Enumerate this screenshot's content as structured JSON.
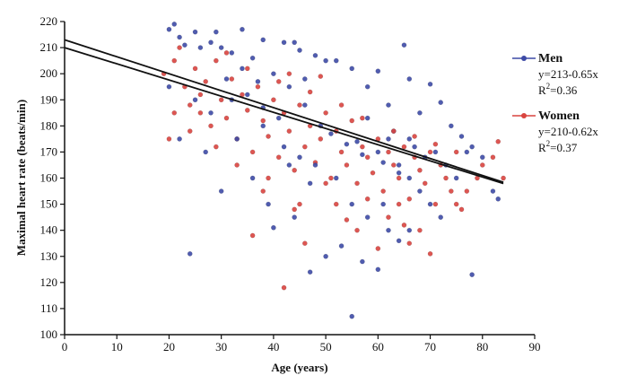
{
  "chart_data": {
    "type": "scatter",
    "xlabel": "Age (years)",
    "ylabel": "Maximal heart rate (beats/min)",
    "xlim": [
      0,
      90
    ],
    "ylim": [
      100,
      220
    ],
    "xticks": [
      "0",
      "10",
      "20",
      "30",
      "40",
      "50",
      "60",
      "70",
      "80",
      "90"
    ],
    "yticks": [
      "100",
      "110",
      "120",
      "130",
      "140",
      "150",
      "160",
      "170",
      "180",
      "190",
      "200",
      "210",
      "220"
    ],
    "grid": false,
    "legend_position": "right",
    "series": [
      {
        "name": "Men",
        "color": "#3d4aa6",
        "equation": "y=213-0.65x",
        "r2_prefix": "R",
        "r2_sup": "2",
        "r2_value": "=0.36",
        "intercept": 213,
        "slope": -0.65,
        "fit_range": [
          0,
          84
        ],
        "points": [
          [
            20,
            217
          ],
          [
            21,
            219
          ],
          [
            22,
            214
          ],
          [
            23,
            211
          ],
          [
            25,
            216
          ],
          [
            26,
            210
          ],
          [
            28,
            212
          ],
          [
            29,
            216
          ],
          [
            30,
            210
          ],
          [
            32,
            208
          ],
          [
            34,
            217
          ],
          [
            36,
            206
          ],
          [
            38,
            213
          ],
          [
            42,
            212
          ],
          [
            44,
            212
          ],
          [
            45,
            209
          ],
          [
            48,
            207
          ],
          [
            50,
            205
          ],
          [
            52,
            205
          ],
          [
            55,
            202
          ],
          [
            60,
            201
          ],
          [
            65,
            211
          ],
          [
            66,
            198
          ],
          [
            70,
            196
          ],
          [
            72,
            189
          ],
          [
            58,
            195
          ],
          [
            62,
            188
          ],
          [
            68,
            185
          ],
          [
            74,
            180
          ],
          [
            76,
            176
          ],
          [
            78,
            172
          ],
          [
            80,
            168
          ],
          [
            82,
            155
          ],
          [
            83,
            152
          ],
          [
            56,
            174
          ],
          [
            60,
            170
          ],
          [
            64,
            165
          ],
          [
            66,
            160
          ],
          [
            68,
            155
          ],
          [
            70,
            150
          ],
          [
            72,
            145
          ],
          [
            55,
            150
          ],
          [
            58,
            145
          ],
          [
            62,
            140
          ],
          [
            64,
            136
          ],
          [
            57,
            128
          ],
          [
            60,
            125
          ],
          [
            50,
            130
          ],
          [
            53,
            134
          ],
          [
            55,
            107
          ],
          [
            47,
            124
          ],
          [
            44,
            145
          ],
          [
            40,
            141
          ],
          [
            39,
            150
          ],
          [
            36,
            160
          ],
          [
            33,
            175
          ],
          [
            30,
            155
          ],
          [
            27,
            170
          ],
          [
            24,
            131
          ],
          [
            22,
            175
          ],
          [
            20,
            195
          ],
          [
            25,
            190
          ],
          [
            28,
            185
          ],
          [
            31,
            198
          ],
          [
            35,
            192
          ],
          [
            38,
            187
          ],
          [
            41,
            183
          ],
          [
            43,
            195
          ],
          [
            46,
            188
          ],
          [
            49,
            180
          ],
          [
            51,
            177
          ],
          [
            54,
            173
          ],
          [
            57,
            169
          ],
          [
            61,
            166
          ],
          [
            63,
            178
          ],
          [
            67,
            172
          ],
          [
            69,
            168
          ],
          [
            73,
            165
          ],
          [
            75,
            160
          ],
          [
            77,
            170
          ],
          [
            42,
            172
          ],
          [
            45,
            168
          ],
          [
            48,
            165
          ],
          [
            52,
            160
          ],
          [
            40,
            200
          ],
          [
            37,
            197
          ],
          [
            34,
            202
          ],
          [
            46,
            198
          ],
          [
            58,
            183
          ],
          [
            62,
            175
          ],
          [
            64,
            162
          ],
          [
            66,
            175
          ],
          [
            71,
            170
          ],
          [
            78,
            123
          ],
          [
            66,
            140
          ],
          [
            61,
            150
          ],
          [
            47,
            158
          ],
          [
            43,
            165
          ],
          [
            38,
            180
          ],
          [
            32,
            190
          ]
        ]
      },
      {
        "name": "Women",
        "color": "#d9443f",
        "equation": "y=210-0.62x",
        "r2_prefix": "R",
        "r2_sup": "2",
        "r2_value": "=0.37",
        "intercept": 210,
        "slope": -0.62,
        "fit_range": [
          0,
          84
        ],
        "points": [
          [
            19,
            200
          ],
          [
            20,
            175
          ],
          [
            21,
            205
          ],
          [
            22,
            210
          ],
          [
            23,
            195
          ],
          [
            24,
            188
          ],
          [
            25,
            202
          ],
          [
            26,
            185
          ],
          [
            27,
            197
          ],
          [
            28,
            180
          ],
          [
            29,
            205
          ],
          [
            30,
            190
          ],
          [
            31,
            183
          ],
          [
            32,
            198
          ],
          [
            33,
            175
          ],
          [
            34,
            192
          ],
          [
            35,
            186
          ],
          [
            36,
            170
          ],
          [
            37,
            195
          ],
          [
            38,
            182
          ],
          [
            39,
            176
          ],
          [
            40,
            190
          ],
          [
            41,
            168
          ],
          [
            42,
            185
          ],
          [
            43,
            178
          ],
          [
            44,
            163
          ],
          [
            45,
            188
          ],
          [
            46,
            172
          ],
          [
            47,
            180
          ],
          [
            48,
            166
          ],
          [
            49,
            175
          ],
          [
            50,
            185
          ],
          [
            51,
            160
          ],
          [
            52,
            178
          ],
          [
            53,
            170
          ],
          [
            54,
            165
          ],
          [
            55,
            182
          ],
          [
            56,
            158
          ],
          [
            57,
            172
          ],
          [
            58,
            168
          ],
          [
            59,
            162
          ],
          [
            60,
            175
          ],
          [
            61,
            155
          ],
          [
            62,
            170
          ],
          [
            63,
            165
          ],
          [
            64,
            160
          ],
          [
            65,
            172
          ],
          [
            66,
            152
          ],
          [
            67,
            168
          ],
          [
            68,
            163
          ],
          [
            69,
            158
          ],
          [
            70,
            170
          ],
          [
            71,
            150
          ],
          [
            72,
            165
          ],
          [
            73,
            160
          ],
          [
            74,
            155
          ],
          [
            75,
            150
          ],
          [
            76,
            148
          ],
          [
            80,
            165
          ],
          [
            82,
            168
          ],
          [
            84,
            160
          ],
          [
            83,
            174
          ],
          [
            79,
            160
          ],
          [
            77,
            155
          ],
          [
            42,
            118
          ],
          [
            46,
            135
          ],
          [
            36,
            138
          ],
          [
            44,
            148
          ],
          [
            52,
            150
          ],
          [
            58,
            152
          ],
          [
            62,
            145
          ],
          [
            65,
            142
          ],
          [
            68,
            140
          ],
          [
            70,
            131
          ],
          [
            60,
            133
          ],
          [
            64,
            150
          ],
          [
            39,
            160
          ],
          [
            33,
            165
          ],
          [
            29,
            172
          ],
          [
            24,
            178
          ],
          [
            21,
            185
          ],
          [
            26,
            192
          ],
          [
            31,
            208
          ],
          [
            35,
            202
          ],
          [
            41,
            197
          ],
          [
            47,
            193
          ],
          [
            53,
            188
          ],
          [
            57,
            183
          ],
          [
            63,
            178
          ],
          [
            67,
            176
          ],
          [
            71,
            173
          ],
          [
            75,
            170
          ],
          [
            43,
            200
          ],
          [
            49,
            199
          ],
          [
            38,
            155
          ],
          [
            45,
            150
          ],
          [
            50,
            158
          ],
          [
            54,
            144
          ],
          [
            56,
            140
          ],
          [
            66,
            135
          ]
        ]
      }
    ]
  }
}
